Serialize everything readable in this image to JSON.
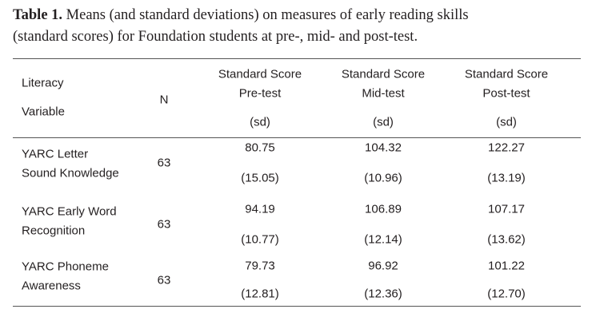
{
  "caption": {
    "label": "Table 1.",
    "lines": [
      "Means (and standard deviations) on measures of early reading skills",
      "(standard scores) for Foundation students at pre-, mid- and post-test."
    ]
  },
  "table": {
    "header": {
      "variable": [
        "Literacy",
        "Variable"
      ],
      "n": "N",
      "columns": [
        {
          "lines": [
            "Standard Score",
            "Pre-test"
          ],
          "sub": "(sd)"
        },
        {
          "lines": [
            "Standard Score",
            "Mid-test"
          ],
          "sub": "(sd)"
        },
        {
          "lines": [
            "Standard Score",
            "Post-test"
          ],
          "sub": "(sd)"
        }
      ]
    },
    "rows": [
      {
        "variable": [
          "YARC Letter",
          "Sound Knowledge"
        ],
        "n": "63",
        "means": [
          "80.75",
          "104.32",
          "122.27"
        ],
        "sds": [
          "(15.05)",
          "(10.96)",
          "(13.19)"
        ]
      },
      {
        "variable": [
          "YARC Early Word",
          "Recognition"
        ],
        "n": "63",
        "means": [
          "94.19",
          "106.89",
          "107.17"
        ],
        "sds": [
          "(10.77)",
          "(12.14)",
          "(13.62)"
        ]
      },
      {
        "variable": [
          "YARC Phoneme",
          "Awareness"
        ],
        "n": "63",
        "means": [
          "79.73",
          "96.92",
          "101.22"
        ],
        "sds": [
          "(12.81)",
          "(12.36)",
          "(12.70)"
        ]
      }
    ]
  }
}
